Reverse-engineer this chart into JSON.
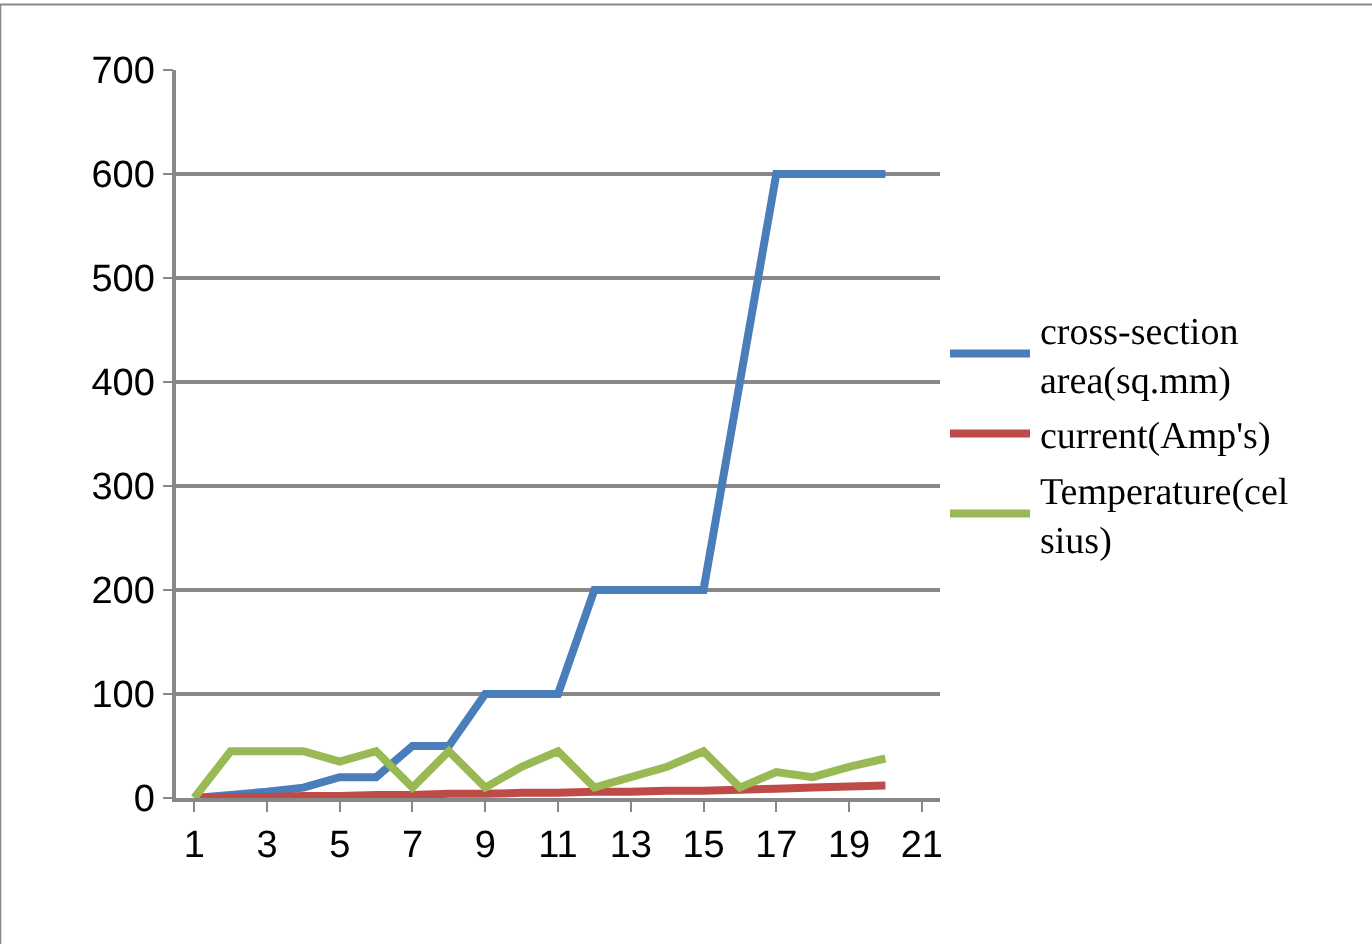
{
  "chart_data": {
    "type": "line",
    "x": [
      1,
      2,
      3,
      4,
      5,
      6,
      7,
      8,
      9,
      10,
      11,
      12,
      13,
      14,
      15,
      16,
      17,
      18,
      19,
      20
    ],
    "series": [
      {
        "name": "cross-section area(sq.mm)",
        "color": "#4a7ebb",
        "values": [
          0,
          3,
          6,
          10,
          20,
          20,
          50,
          50,
          100,
          100,
          100,
          200,
          200,
          200,
          200,
          400,
          600,
          600,
          600,
          600
        ]
      },
      {
        "name": "current(Amp's)",
        "color": "#be4b48",
        "values": [
          0,
          1,
          1,
          2,
          2,
          3,
          3,
          4,
          4,
          5,
          5,
          6,
          6,
          7,
          7,
          8,
          9,
          10,
          11,
          12
        ]
      },
      {
        "name": "Temperature(celsius)",
        "color": "#98b954",
        "values": [
          0,
          45,
          45,
          45,
          35,
          45,
          10,
          45,
          10,
          30,
          45,
          10,
          20,
          30,
          45,
          10,
          25,
          20,
          30,
          38
        ]
      }
    ],
    "xlim": [
      0.5,
      21.5
    ],
    "xticks": [
      1,
      3,
      5,
      7,
      9,
      11,
      13,
      15,
      17,
      19,
      21
    ],
    "ylim": [
      0,
      700
    ],
    "yticks": [
      0,
      100,
      200,
      300,
      400,
      500,
      600,
      700
    ],
    "grid": "y",
    "legend": "right",
    "marker": "none",
    "line_style": "solid"
  }
}
